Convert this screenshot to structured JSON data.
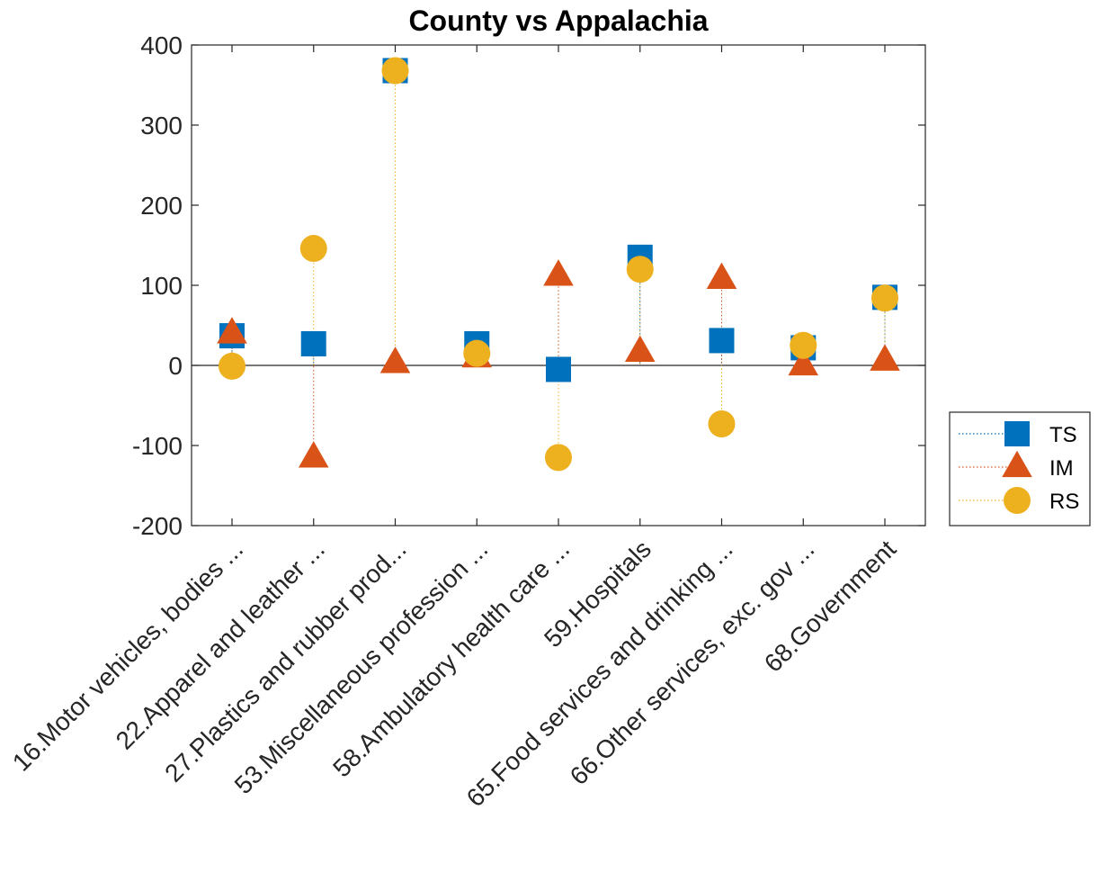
{
  "chart_data": {
    "type": "scatter",
    "title": "County vs Appalachia",
    "xlabel": "",
    "ylabel": "",
    "ylim": [
      -200,
      400
    ],
    "yticks": [
      "400",
      "300",
      "200",
      "100",
      "0",
      "-100",
      "-200"
    ],
    "yticks_values": [
      400,
      300,
      200,
      100,
      0,
      -100,
      -200
    ],
    "grid": false,
    "legend_position": "right",
    "categories": [
      "16.Motor vehicles, bodies ...",
      "22.Apparel and leather ...",
      "27.Plastics and rubber prod...",
      "53.Miscellaneous profession ...",
      "58.Ambulatory health care ...",
      "59.Hospitals",
      "65.Food services and drinking ...",
      "66.Other services, exc. gov ...",
      "68.Government"
    ],
    "series": [
      {
        "name": "TS",
        "marker": "square",
        "color": "#0072BD",
        "values": [
          37,
          27,
          368,
          27,
          -5,
          135,
          31,
          22,
          85
        ]
      },
      {
        "name": "IM",
        "marker": "triangle",
        "color": "#D95319",
        "values": [
          40,
          -115,
          3,
          10,
          112,
          17,
          108,
          0,
          6
        ]
      },
      {
        "name": "RS",
        "marker": "circle",
        "color": "#EDB120",
        "values": [
          -1,
          146,
          368,
          15,
          -115,
          120,
          -73,
          25,
          84
        ]
      }
    ]
  }
}
